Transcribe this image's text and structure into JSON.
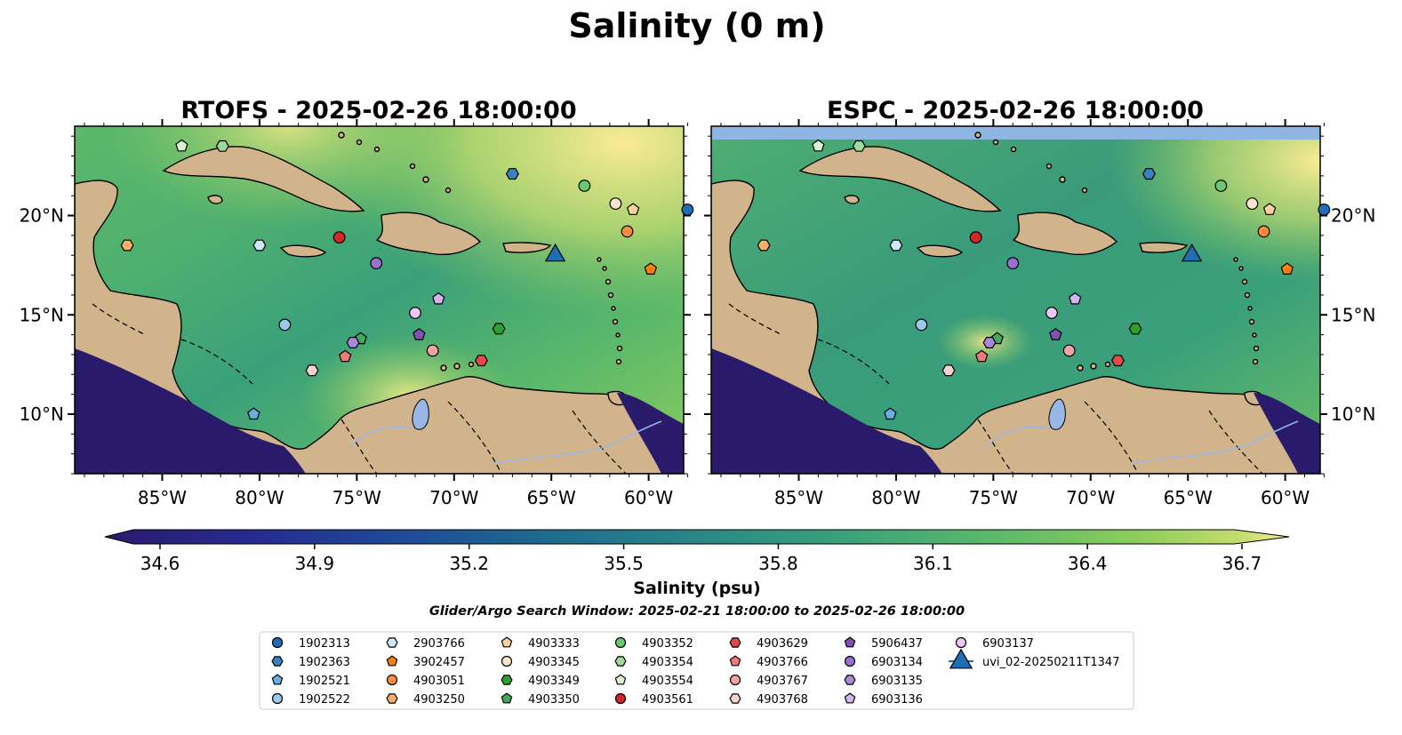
{
  "figure": {
    "title": "Salinity (0 m)",
    "subtitle": "Glider/Argo Search Window: 2025-02-21 18:00:00 to 2025-02-26 18:00:00"
  },
  "panels": [
    {
      "id": "rtofs",
      "title": "RTOFS - 2025-02-26 18:00:00"
    },
    {
      "id": "espc",
      "title": "ESPC - 2025-02-26 18:00:00"
    }
  ],
  "axes": {
    "lon_ticks": [
      "85°W",
      "80°W",
      "75°W",
      "70°W",
      "65°W",
      "60°W"
    ],
    "lat_ticks": [
      "20°N",
      "15°N",
      "10°N"
    ],
    "lon_range": [
      -89.5,
      -58.2
    ],
    "lat_range": [
      7.0,
      24.5
    ]
  },
  "colorbar": {
    "label": "Salinity (psu)",
    "ticks": [
      "34.6",
      "34.9",
      "35.2",
      "35.5",
      "35.8",
      "36.1",
      "36.4",
      "36.7"
    ],
    "range": [
      34.6,
      36.7
    ],
    "colormap": [
      "#2a1a6b",
      "#262a8e",
      "#1f4a97",
      "#1e6a8e",
      "#2a8687",
      "#3aa07a",
      "#5bb86a",
      "#8ccc5c",
      "#c4dd6e",
      "#fbec94"
    ],
    "extend": "both"
  },
  "colors": {
    "land": "#d2b48c",
    "lake": "#99b7e6",
    "deep_water": "#2a1a6b",
    "espc_nodata": "#8fb6e3"
  },
  "legend": {
    "entries": [
      {
        "id": "1902313",
        "marker": "circle",
        "color": "#1f6eb4",
        "lon": -58.0,
        "lat": 20.3
      },
      {
        "id": "1902363",
        "marker": "hexagon",
        "color": "#3b80c0",
        "lon": -67.0,
        "lat": 22.1
      },
      {
        "id": "1902521",
        "marker": "pentagon",
        "color": "#6aaee0",
        "lon": -80.3,
        "lat": 10.0
      },
      {
        "id": "1902522",
        "marker": "circle",
        "color": "#9cc8ec",
        "lon": -78.7,
        "lat": 14.5
      },
      {
        "id": "2903766",
        "marker": "hexagon",
        "color": "#cfe8fa",
        "lon": -80.0,
        "lat": 18.5
      },
      {
        "id": "3902457",
        "marker": "pentagon",
        "color": "#ff7f0e",
        "lon": -59.9,
        "lat": 17.3
      },
      {
        "id": "4903051",
        "marker": "circle",
        "color": "#fd8d3c",
        "lon": -61.1,
        "lat": 19.2
      },
      {
        "id": "4903250",
        "marker": "hexagon",
        "color": "#fdae6b",
        "lon": -86.8,
        "lat": 18.5
      },
      {
        "id": "4903333",
        "marker": "pentagon",
        "color": "#fdd0a2",
        "lon": -60.8,
        "lat": 20.3
      },
      {
        "id": "4903345",
        "marker": "circle",
        "color": "#fee6ce",
        "lon": -61.7,
        "lat": 20.6
      },
      {
        "id": "4903349",
        "marker": "hexagon",
        "color": "#2ca02c",
        "lon": -67.7,
        "lat": 14.3
      },
      {
        "id": "4903350",
        "marker": "pentagon",
        "color": "#41ab5d",
        "lon": -74.8,
        "lat": 13.8
      },
      {
        "id": "4903352",
        "marker": "circle",
        "color": "#6cc86c",
        "lon": -63.3,
        "lat": 21.5
      },
      {
        "id": "4903354",
        "marker": "hexagon",
        "color": "#a1d99b",
        "lon": -81.9,
        "lat": 23.5
      },
      {
        "id": "4903554",
        "marker": "pentagon",
        "color": "#d9f0d3",
        "lon": -84.0,
        "lat": 23.5
      },
      {
        "id": "4903561",
        "marker": "circle",
        "color": "#d62728",
        "lon": -75.9,
        "lat": 18.9
      },
      {
        "id": "4903629",
        "marker": "hexagon",
        "color": "#e34a4a",
        "lon": -68.6,
        "lat": 12.7
      },
      {
        "id": "4903766",
        "marker": "pentagon",
        "color": "#f07b7b",
        "lon": -75.6,
        "lat": 12.9
      },
      {
        "id": "4903767",
        "marker": "circle",
        "color": "#f4a3a3",
        "lon": -71.1,
        "lat": 13.2
      },
      {
        "id": "4903768",
        "marker": "hexagon",
        "color": "#fbd0d0",
        "lon": -77.3,
        "lat": 12.2
      },
      {
        "id": "5906437",
        "marker": "pentagon",
        "color": "#7f52b4",
        "lon": -71.8,
        "lat": 14.0
      },
      {
        "id": "6903134",
        "marker": "circle",
        "color": "#9a70cf",
        "lon": -74.0,
        "lat": 17.6
      },
      {
        "id": "6903135",
        "marker": "hexagon",
        "color": "#a888d8",
        "lon": -75.2,
        "lat": 13.6
      },
      {
        "id": "6903136",
        "marker": "pentagon",
        "color": "#d5b3ef",
        "lon": -70.8,
        "lat": 15.8
      },
      {
        "id": "6903137",
        "marker": "circle",
        "color": "#ecc9f7",
        "lon": -72.0,
        "lat": 15.1
      },
      {
        "id": "uvi_02-20250211T1347",
        "marker": "triangle",
        "color": "#1f6eb4",
        "lon": -64.8,
        "lat": 18.1
      }
    ]
  }
}
